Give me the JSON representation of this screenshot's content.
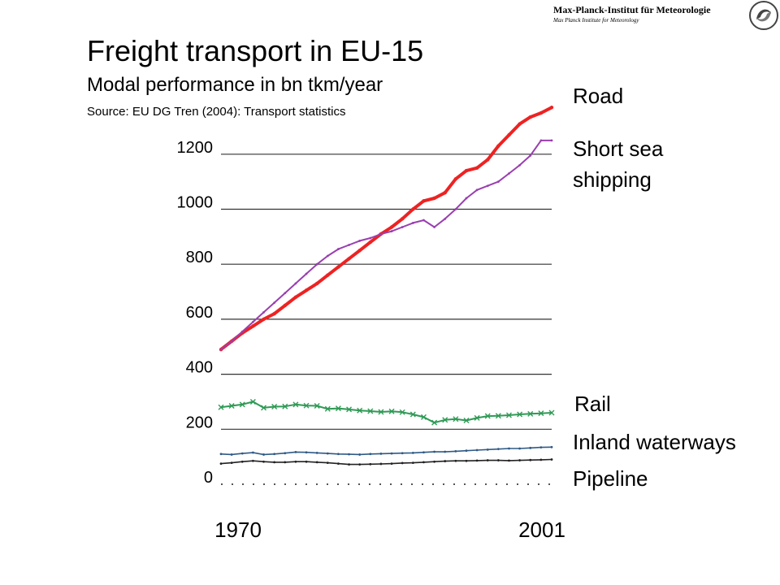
{
  "header": {
    "institute_name": "Max-Planck-Institut für Meteorologie",
    "institute_subtitle": "Max Planck Institute for Meteorology"
  },
  "title": "Freight transport in EU-15",
  "subtitle": "Modal performance in bn tkm/year",
  "source": "Source: EU DG Tren (2004): Transport statistics",
  "chart_data": {
    "type": "line",
    "title": "Freight transport in EU-15",
    "subtitle": "Modal performance in bn tkm/year",
    "ylabel": "",
    "xlabel": "",
    "ylim": [
      0,
      1300
    ],
    "xlim": [
      1970,
      2001
    ],
    "yticks": [
      0,
      200,
      400,
      600,
      800,
      1000,
      1200
    ],
    "xtick_labels": [
      "1970",
      "2001"
    ],
    "grid": "horizontal",
    "legend": "labels at right of line ends",
    "x": [
      1970,
      1971,
      1972,
      1973,
      1974,
      1975,
      1976,
      1977,
      1978,
      1979,
      1980,
      1981,
      1982,
      1983,
      1984,
      1985,
      1986,
      1987,
      1988,
      1989,
      1990,
      1991,
      1992,
      1993,
      1994,
      1995,
      1996,
      1997,
      1998,
      1999,
      2000,
      2001
    ],
    "series": [
      {
        "name": "Road",
        "color": "#ee2222",
        "values": [
          490,
          520,
          550,
          575,
          600,
          620,
          650,
          680,
          705,
          730,
          760,
          790,
          820,
          850,
          880,
          910,
          935,
          965,
          1000,
          1030,
          1040,
          1060,
          1110,
          1140,
          1150,
          1180,
          1230,
          1270,
          1310,
          1335,
          1350,
          1370
        ]
      },
      {
        "name": "Short sea shipping",
        "color": "#9a3fb0",
        "values": [
          490,
          520,
          555,
          590,
          625,
          660,
          695,
          730,
          765,
          800,
          830,
          855,
          870,
          885,
          895,
          910,
          920,
          935,
          950,
          960,
          935,
          965,
          1000,
          1040,
          1070,
          1085,
          1100,
          1130,
          1160,
          1195,
          1250,
          1250
        ]
      },
      {
        "name": "Rail",
        "color": "#2f9a55",
        "values": [
          280,
          285,
          290,
          300,
          278,
          282,
          283,
          290,
          286,
          285,
          274,
          276,
          272,
          268,
          266,
          263,
          265,
          262,
          254,
          244,
          224,
          234,
          237,
          232,
          241,
          248,
          249,
          251,
          254,
          256,
          258,
          260
        ]
      },
      {
        "name": "Inland waterways",
        "color": "#2f5a86",
        "values": [
          110,
          108,
          112,
          115,
          108,
          110,
          113,
          117,
          116,
          114,
          112,
          110,
          109,
          108,
          110,
          111,
          112,
          113,
          114,
          116,
          118,
          118,
          120,
          122,
          124,
          126,
          128,
          130,
          130,
          132,
          134,
          135
        ]
      },
      {
        "name": "Pipeline",
        "color": "#222222",
        "values": [
          75,
          78,
          82,
          85,
          82,
          80,
          80,
          82,
          82,
          80,
          78,
          75,
          72,
          72,
          73,
          74,
          75,
          77,
          78,
          80,
          82,
          84,
          85,
          85,
          86,
          87,
          87,
          86,
          87,
          88,
          89,
          90
        ]
      }
    ]
  }
}
